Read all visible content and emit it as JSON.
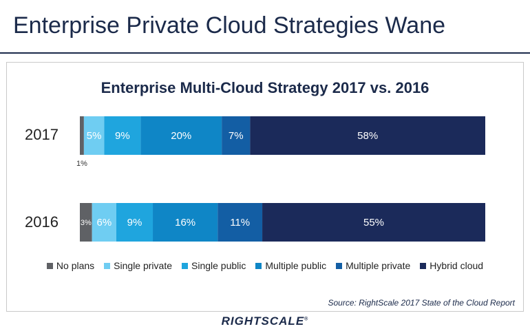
{
  "page": {
    "title": "Enterprise Private Cloud Strategies Wane",
    "source": "Source: RightScale 2017 State of the Cloud Report",
    "logo_text": "RIGHTSCALE",
    "logo_mark": "®"
  },
  "chart_data": {
    "type": "bar",
    "orientation": "horizontal",
    "stacked": true,
    "title": "Enterprise Multi-Cloud Strategy 2017 vs. 2016",
    "categories": [
      "2017",
      "2016"
    ],
    "xlim": [
      0,
      100
    ],
    "series": [
      {
        "name": "No plans",
        "values": [
          1,
          3
        ],
        "labels": [
          "1%",
          "3%"
        ],
        "color": "#5f6165"
      },
      {
        "name": "Single private",
        "values": [
          5,
          6
        ],
        "labels": [
          "5%",
          "6%"
        ],
        "color": "#6fcdf2"
      },
      {
        "name": "Single public",
        "values": [
          9,
          9
        ],
        "labels": [
          "9%",
          "9%"
        ],
        "color": "#1fa5de"
      },
      {
        "name": "Multiple public",
        "values": [
          20,
          16
        ],
        "labels": [
          "20%",
          "16%"
        ],
        "color": "#0f86c6"
      },
      {
        "name": "Multiple private",
        "values": [
          7,
          11
        ],
        "labels": [
          "7%",
          "11%"
        ],
        "color": "#135ea4"
      },
      {
        "name": "Hybrid cloud",
        "values": [
          58,
          55
        ],
        "labels": [
          "58%",
          "55%"
        ],
        "color": "#1b2a5a"
      }
    ],
    "legend_position": "bottom",
    "grid": false
  }
}
